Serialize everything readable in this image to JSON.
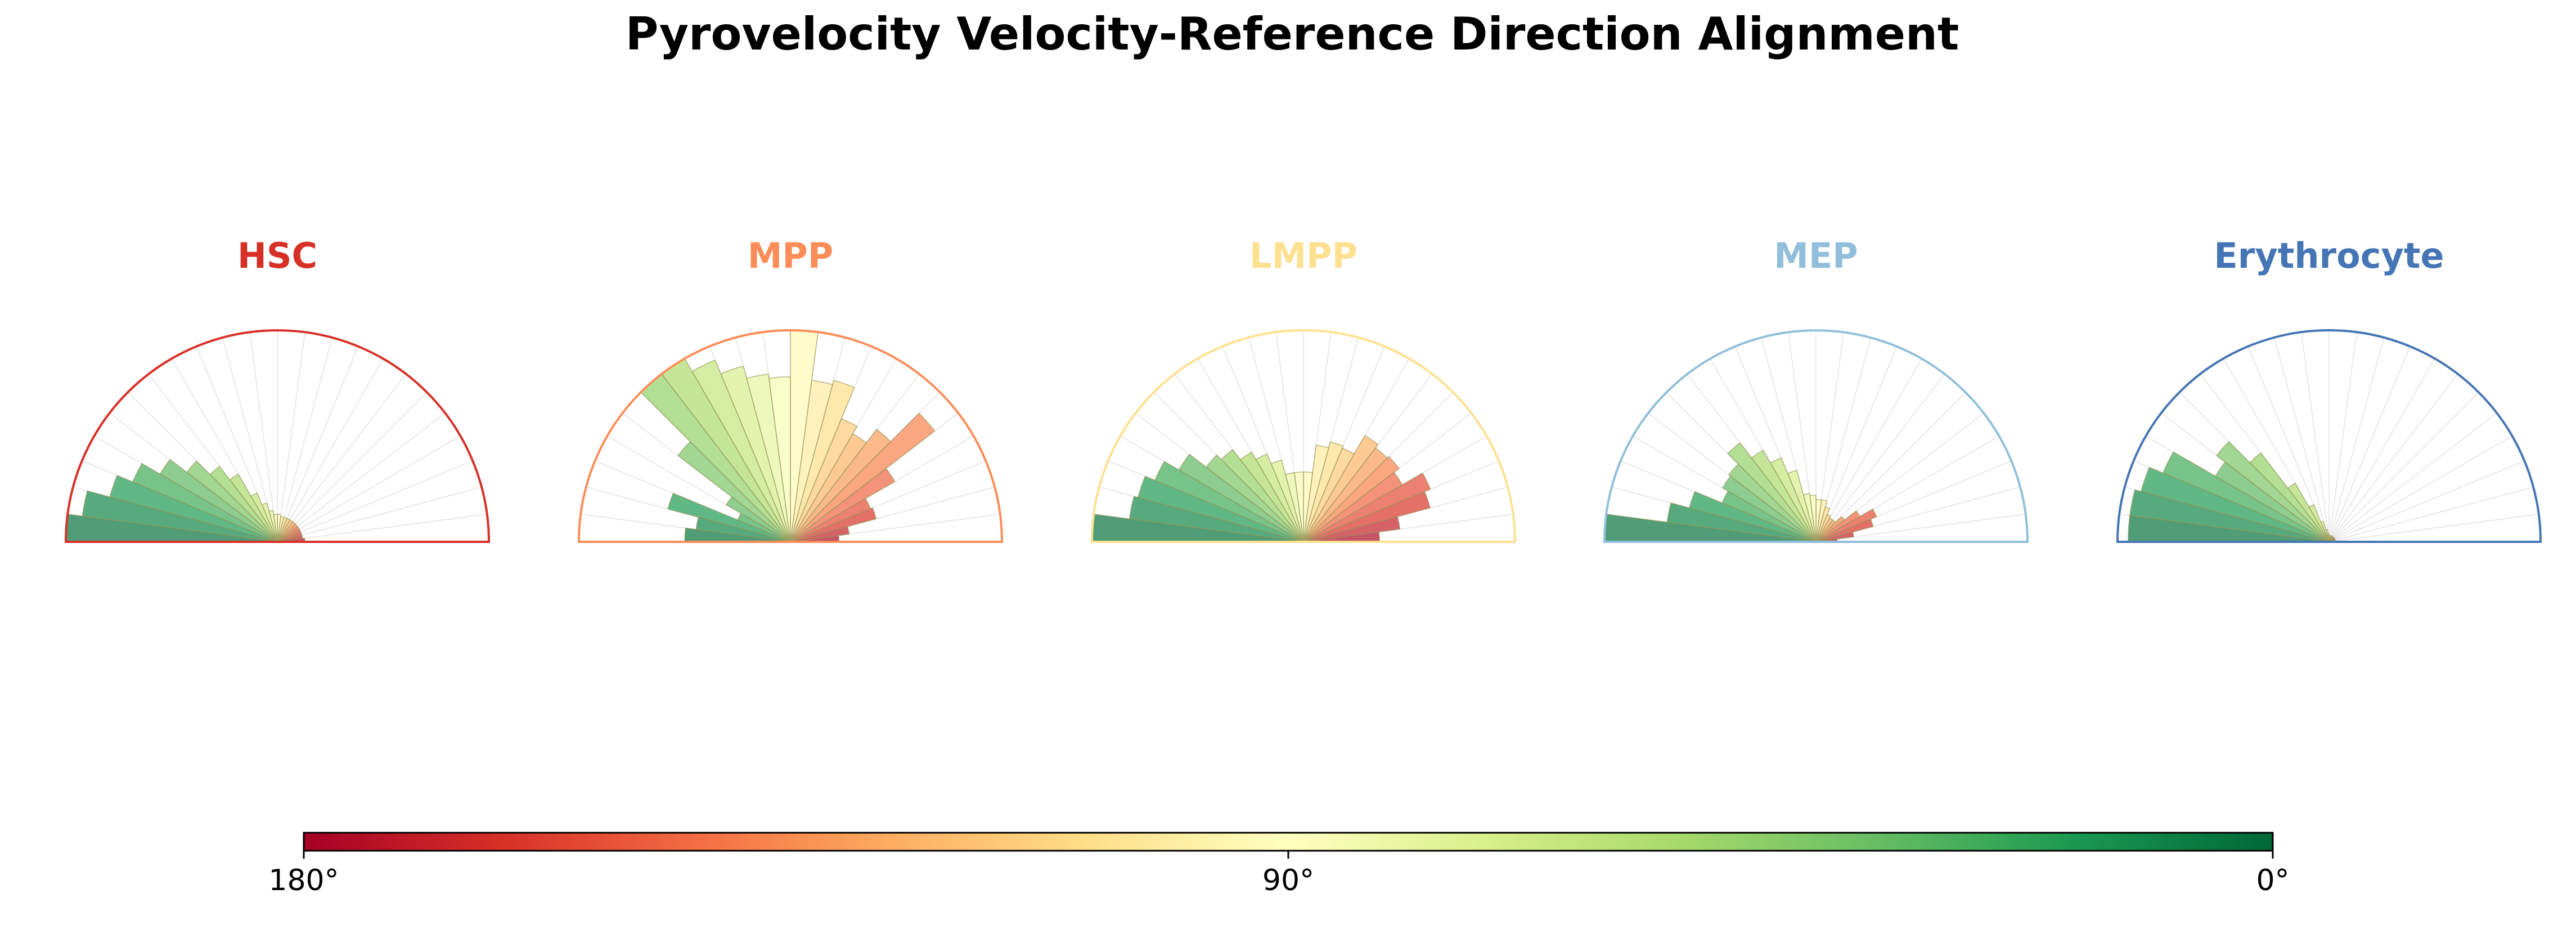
{
  "chart_data": {
    "type": "polar-histogram",
    "title": "Pyrovelocity Velocity-Reference Direction Alignment",
    "theta_range_deg": [
      0,
      180
    ],
    "bin_width_deg": 7.5,
    "bin_centers_deg": [
      3.75,
      11.25,
      18.75,
      26.25,
      33.75,
      41.25,
      48.75,
      56.25,
      63.75,
      71.25,
      78.75,
      86.25,
      93.75,
      101.25,
      108.75,
      116.25,
      123.75,
      131.25,
      138.75,
      146.25,
      153.75,
      161.25,
      168.75,
      176.25
    ],
    "colormap": "RdYlGn",
    "colorbar": {
      "ticks": [
        180,
        90,
        0
      ],
      "tick_labels": [
        "180°",
        "90°",
        "0°"
      ],
      "left_color": "#a50026",
      "mid_color": "#ffffbf",
      "right_color": "#006837"
    },
    "panels": [
      {
        "label": "HSC",
        "color": "#d73027",
        "values": [
          0.13,
          0.12,
          0.12,
          0.12,
          0.12,
          0.12,
          0.12,
          0.12,
          0.12,
          0.12,
          0.12,
          0.13,
          0.13,
          0.15,
          0.19,
          0.25,
          0.37,
          0.45,
          0.54,
          0.64,
          0.74,
          0.82,
          0.93,
          1.0
        ]
      },
      {
        "label": "MPP",
        "color": "#fc8d59",
        "values": [
          0.23,
          0.28,
          0.42,
          0.41,
          0.57,
          0.86,
          0.67,
          0.59,
          0.63,
          0.79,
          0.77,
          1.0,
          0.78,
          0.8,
          0.86,
          0.93,
          1.0,
          1.0,
          0.67,
          0.35,
          0.27,
          0.6,
          0.45,
          0.5
        ]
      },
      {
        "label": "LMPP",
        "color": "#fee090",
        "values": [
          0.36,
          0.46,
          0.62,
          0.65,
          0.54,
          0.57,
          0.56,
          0.58,
          0.48,
          0.49,
          0.46,
          0.33,
          0.33,
          0.33,
          0.4,
          0.45,
          0.49,
          0.55,
          0.58,
          0.68,
          0.76,
          0.81,
          0.83,
          1.0
        ]
      },
      {
        "label": "MEP",
        "color": "#91bfdb",
        "values": [
          0.1,
          0.18,
          0.28,
          0.31,
          0.24,
          0.17,
          0.13,
          0.13,
          0.14,
          0.17,
          0.2,
          0.2,
          0.22,
          0.23,
          0.35,
          0.43,
          0.5,
          0.59,
          0.52,
          0.51,
          0.48,
          0.62,
          0.71,
          1.0
        ]
      },
      {
        "label": "Erythrocyte",
        "color": "#4575b4",
        "values": [
          0.03,
          0.03,
          0.03,
          0.03,
          0.03,
          0.03,
          0.03,
          0.03,
          0.03,
          0.03,
          0.03,
          0.03,
          0.04,
          0.06,
          0.1,
          0.19,
          0.32,
          0.53,
          0.67,
          0.62,
          0.85,
          0.92,
          0.95,
          0.95
        ]
      }
    ]
  }
}
